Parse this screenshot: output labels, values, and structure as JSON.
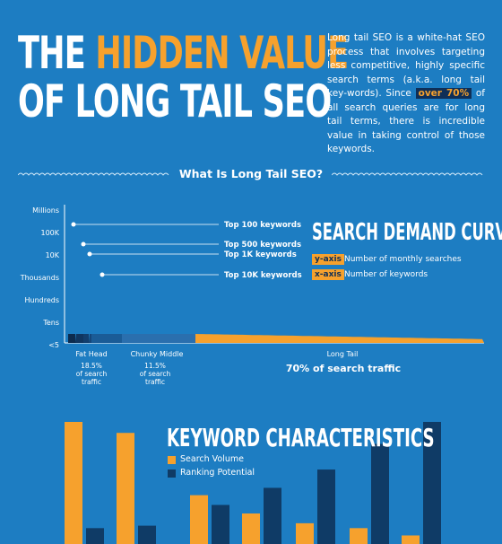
{
  "header": {
    "title_line1_a": "THE ",
    "title_line1_b": "HIDDEN VALUE",
    "title_line2": "OF LONG TAIL SEO",
    "intro_before": "Long tail SEO is a white-hat SEO process that involves targeting less competitive, highly specific search terms (a.k.a. long tail key-words). Since ",
    "intro_highlight": "over 70%",
    "intro_after": " of all search queries are for long tail terms, there is incredible value in taking control of those keywords."
  },
  "section": {
    "heading": "What Is Long Tail SEO?"
  },
  "colors": {
    "background": "#1d7dc2",
    "accent_orange": "#f6a12d",
    "navy": "#0f3b66",
    "dark_navy": "#0f2f57"
  },
  "chart_data": [
    {
      "type": "area",
      "title": "SEARCH DEMAND CURVE",
      "y_ticks": [
        "Millions",
        "100K",
        "10K",
        "Thousands",
        "Hundreds",
        "Tens",
        "<5"
      ],
      "annotations": [
        {
          "label": "Top 100 keywords",
          "y_tick": "Millions"
        },
        {
          "label": "Top 500 keywords",
          "y_tick": "100K"
        },
        {
          "label": "Top 1K keywords",
          "y_tick": "10K"
        },
        {
          "label": "Top 10K keywords",
          "y_tick": "Thousands"
        }
      ],
      "axis_legend": [
        {
          "tag": "y-axis",
          "desc": "Number of monthly searches"
        },
        {
          "tag": "x-axis",
          "desc": "Number of keywords"
        }
      ],
      "segments": [
        {
          "name": "Fat Head",
          "share_line1": "18.5%",
          "share_line2": "of search",
          "share_line3": "traffic"
        },
        {
          "name": "Chunky Middle",
          "share_line1": "11.5%",
          "share_line2": "of search",
          "share_line3": "traffic"
        },
        {
          "name": "Long Tail",
          "share": "70% of search traffic"
        }
      ]
    },
    {
      "type": "bar",
      "title": "KEYWORD CHARACTERISTICS",
      "series": [
        {
          "name": "Search Volume",
          "color": "#f6a12d",
          "values": [
            100,
            91,
            40,
            25,
            17,
            13,
            7
          ]
        },
        {
          "name": "Ranking Potential",
          "color": "#0f3b66",
          "values": [
            13,
            15,
            32,
            46,
            61,
            82,
            100
          ]
        }
      ]
    }
  ]
}
